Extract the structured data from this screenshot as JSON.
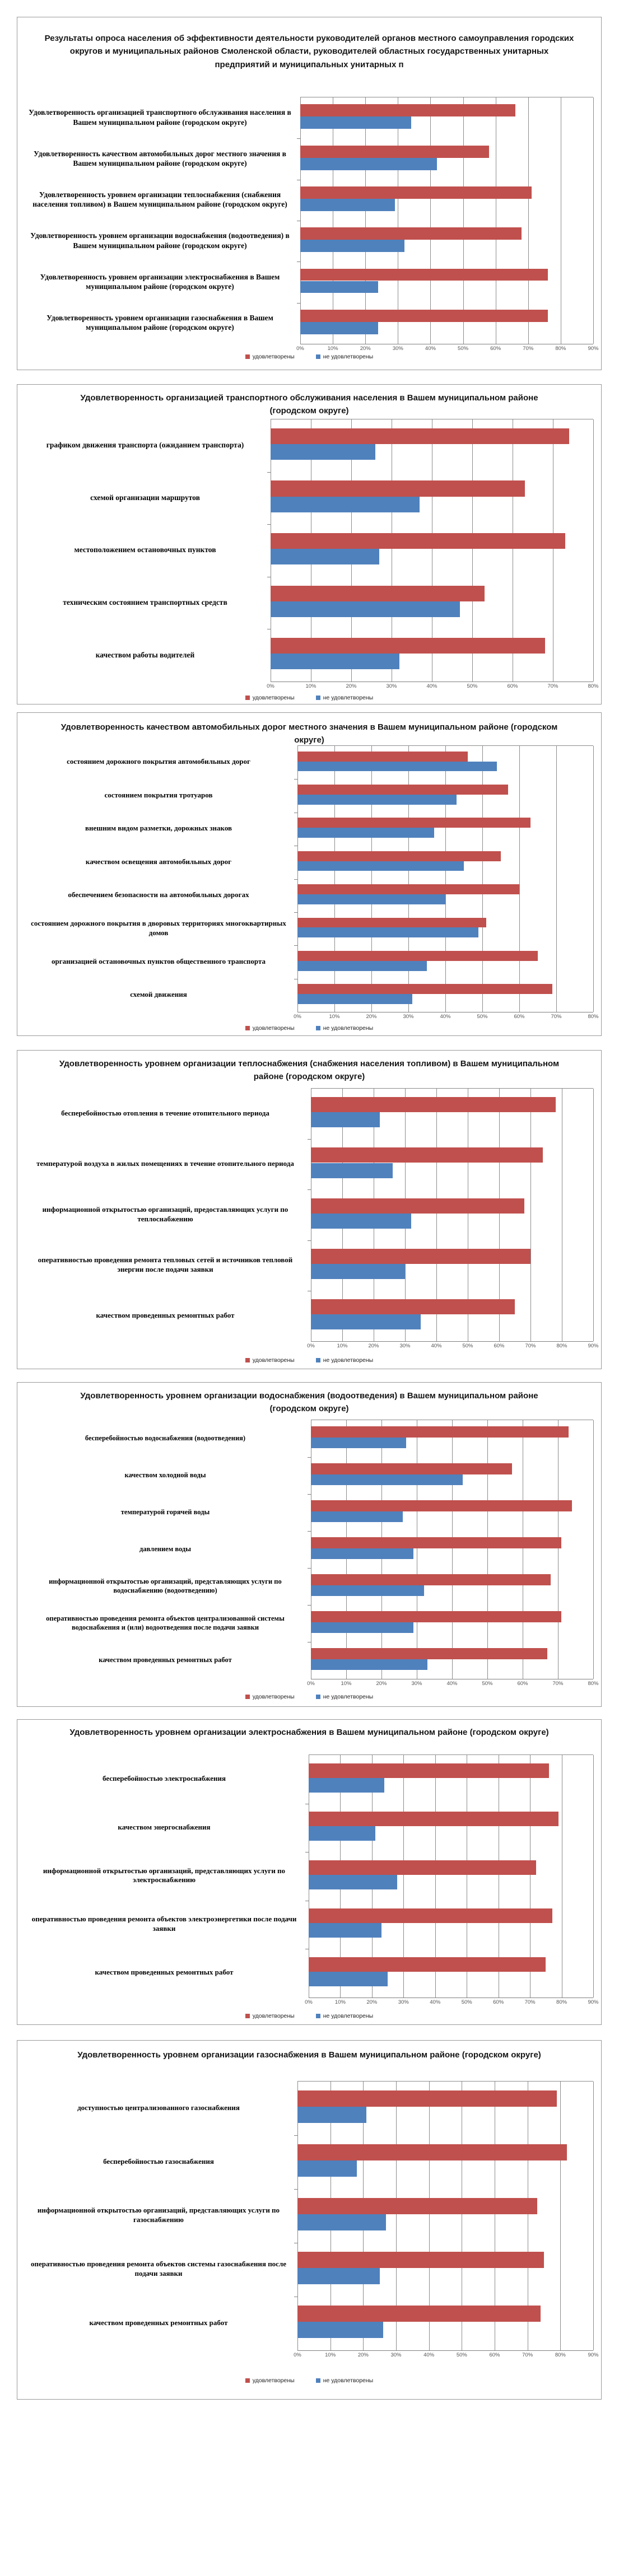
{
  "page": {
    "background": "#ffffff"
  },
  "legend": {
    "satisfied_label": "удовлетворены",
    "not_satisfied_label": "не удовлетворены"
  },
  "colors": {
    "satisfied": "#c0504d",
    "not_satisfied": "#4f81bd",
    "panel_border": "#9a9a9a",
    "gridline": "#8c8c8c",
    "axis_line": "#7f7f7f",
    "tick_text": "#555555",
    "title_text": "#151515"
  },
  "chart_data": [
    {
      "type": "bar",
      "orientation": "horizontal",
      "title": "Результаты опроса населения об эффективности деятельности руководителей органов местного самоуправления городских округов и муниципальных районов Смоленской области, руководителей областных государственных унитарных предприятий и муниципальных унитарных п",
      "categories": [
        "Удовлетворенность организацией транспортного обслуживания населения в Вашем муниципальном районе (городском округе)",
        "Удовлетворенность качеством автомобильных дорог местного значения в Вашем муниципальном районе (городском округе)",
        "Удовлетворенность уровнем организации теплоснабжения (снабжения населения топливом) в Вашем муниципальном районе (городском округе)",
        "Удовлетворенность уровнем организации водоснабжения (водоотведения) в Вашем муниципальном районе (городском округе)",
        "Удовлетворенность уровнем организации электроснабжения в Вашем муниципальном районе (городском округе)",
        "Удовлетворенность уровнем организации газоснабжения в Вашем муниципальном районе (городском округе)"
      ],
      "series": [
        {
          "name": "удовлетворены",
          "values": [
            66,
            58,
            71,
            68,
            76,
            76
          ]
        },
        {
          "name": "не удовлетворены",
          "values": [
            34,
            42,
            29,
            32,
            24,
            24
          ]
        }
      ],
      "xlim": [
        0,
        90
      ],
      "tick_step": 10,
      "tick_labels": [
        "0%",
        "10%",
        "20%",
        "30%",
        "40%",
        "50%",
        "60%",
        "70%",
        "80%",
        "90%"
      ],
      "legend_position": "bottom",
      "grid": true
    },
    {
      "type": "bar",
      "orientation": "horizontal",
      "title": "Удовлетворенность организацией транспортного обслуживания населения в Вашем муниципальном районе (городском округе)",
      "categories": [
        "графиком движения транспорта (ожиданием транспорта)",
        "схемой организации маршрутов",
        "местоположением остановочных пунктов",
        "техническим состоянием транспортных средств",
        "качеством работы водителей"
      ],
      "series": [
        {
          "name": "удовлетворены",
          "values": [
            74,
            63,
            73,
            53,
            68
          ]
        },
        {
          "name": "не удовлетворены",
          "values": [
            26,
            37,
            27,
            47,
            32
          ]
        }
      ],
      "xlim": [
        0,
        80
      ],
      "tick_step": 10,
      "tick_labels": [
        "0%",
        "10%",
        "20%",
        "30%",
        "40%",
        "50%",
        "60%",
        "70%",
        "80%"
      ],
      "legend_position": "bottom",
      "grid": true
    },
    {
      "type": "bar",
      "orientation": "horizontal",
      "title": "Удовлетворенность качеством автомобильных дорог местного значения в Вашем муниципальном районе (городском округе)",
      "categories": [
        "состоянием дорожного покрытия автомобильных дорог",
        "состоянием покрытия тротуаров",
        "внешним видом разметки, дорожных знаков",
        "качеством освещения автомобильных дорог",
        "обеспечением безопасности на автомобильных дорогах",
        "состоянием дорожного покрытия в дворовых территориях многоквартирных домов",
        "организацией остановочных пунктов общественного транспорта",
        "схемой движения"
      ],
      "series": [
        {
          "name": "удовлетворены",
          "values": [
            46,
            57,
            63,
            55,
            60,
            51,
            65,
            69
          ]
        },
        {
          "name": "не удовлетворены",
          "values": [
            54,
            43,
            37,
            45,
            40,
            49,
            35,
            31
          ]
        }
      ],
      "xlim": [
        0,
        80
      ],
      "tick_step": 10,
      "tick_labels": [
        "0%",
        "10%",
        "20%",
        "30%",
        "40%",
        "50%",
        "60%",
        "70%",
        "80%"
      ],
      "legend_position": "bottom",
      "grid": true
    },
    {
      "type": "bar",
      "orientation": "horizontal",
      "title": "Удовлетворенность уровнем организации теплоснабжения (снабжения населения топливом) в Вашем муниципальном районе (городском округе)",
      "categories": [
        "бесперебойностью отопления в течение отопительного периода",
        "температурой  воздуха в жилых помещениях в течение отопительного периода",
        "информационной открытостью  организаций, предоставляющих услуги по теплоснабжению",
        "оперативностью проведения ремонта тепловых сетей и источников тепловой энергии после подачи заявки",
        "качеством проведенных ремонтных работ"
      ],
      "series": [
        {
          "name": "удовлетворены",
          "values": [
            78,
            74,
            68,
            70,
            65
          ]
        },
        {
          "name": "не удовлетворены",
          "values": [
            22,
            26,
            32,
            30,
            35
          ]
        }
      ],
      "xlim": [
        0,
        90
      ],
      "tick_step": 10,
      "tick_labels": [
        "0%",
        "10%",
        "20%",
        "30%",
        "40%",
        "50%",
        "60%",
        "70%",
        "80%",
        "90%"
      ],
      "legend_position": "bottom",
      "grid": true
    },
    {
      "type": "bar",
      "orientation": "horizontal",
      "title": "Удовлетворенность уровнем организации водоснабжения (водоотведения) в Вашем муниципальном районе (городском округе)",
      "categories": [
        "бесперебойностью водоснабжения (водоотведения)",
        "качеством холодной воды",
        "температурой  горячей воды",
        "давлением воды",
        "информационной открытостью  организаций, представляющих услуги по водоснабжению (водоотведению)",
        "оперативностью  проведения ремонта объектов централизованной системы водоснабжения и (или) водоотведения после подачи заявки",
        "качеством проведенных ремонтных работ"
      ],
      "series": [
        {
          "name": "удовлетворены",
          "values": [
            73,
            57,
            74,
            71,
            68,
            71,
            67
          ]
        },
        {
          "name": "не удовлетворены",
          "values": [
            27,
            43,
            26,
            29,
            32,
            29,
            33
          ]
        }
      ],
      "xlim": [
        0,
        80
      ],
      "tick_step": 10,
      "tick_labels": [
        "0%",
        "10%",
        "20%",
        "30%",
        "40%",
        "50%",
        "60%",
        "70%",
        "80%"
      ],
      "legend_position": "bottom",
      "grid": true
    },
    {
      "type": "bar",
      "orientation": "horizontal",
      "title": "Удовлетворенность уровнем организации электроснабжения в Вашем муниципальном районе (городском округе)",
      "categories": [
        "бесперебойностью электроснабжения",
        "качеством энергоснабжения",
        "информационной открытостью  организаций, представляющих услуги по электроснабжению",
        "оперативностью проведения ремонта объектов электроэнергетики после подачи заявки",
        "качеством проведенных ремонтных работ"
      ],
      "series": [
        {
          "name": "удовлетворены",
          "values": [
            76,
            79,
            72,
            77,
            75
          ]
        },
        {
          "name": "не удовлетворены",
          "values": [
            24,
            21,
            28,
            23,
            25
          ]
        }
      ],
      "xlim": [
        0,
        90
      ],
      "tick_step": 10,
      "tick_labels": [
        "0%",
        "10%",
        "20%",
        "30%",
        "40%",
        "50%",
        "60%",
        "70%",
        "80%",
        "90%"
      ],
      "legend_position": "bottom",
      "grid": true
    },
    {
      "type": "bar",
      "orientation": "horizontal",
      "title": "Удовлетворенность уровнем организации газоснабжения в Вашем муниципальном районе (городском округе)",
      "categories": [
        "доступностью централизованного газоснабжения",
        "бесперебойностью газоснабжения",
        "информационной  открытостью  организаций, представляющих услуги по газоснабжению",
        "оперативностью  проведения ремонта объектов системы газоснабжения после подачи заявки",
        "качеством проведенных ремонтных работ"
      ],
      "series": [
        {
          "name": "удовлетворены",
          "values": [
            79,
            82,
            73,
            75,
            74
          ]
        },
        {
          "name": "не удовлетворены",
          "values": [
            21,
            18,
            27,
            25,
            26
          ]
        }
      ],
      "xlim": [
        0,
        90
      ],
      "tick_step": 10,
      "tick_labels": [
        "0%",
        "10%",
        "20%",
        "30%",
        "40%",
        "50%",
        "60%",
        "70%",
        "80%",
        "90%"
      ],
      "legend_position": "bottom",
      "grid": true
    }
  ]
}
